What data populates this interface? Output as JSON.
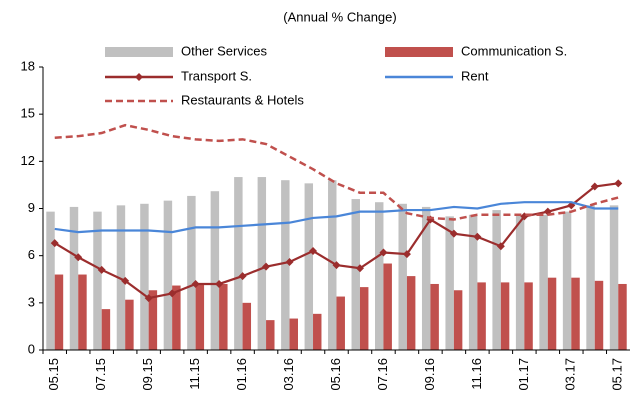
{
  "chart_data": {
    "type": "bar-line",
    "title": "(Annual % Change)",
    "categories": [
      "05.15",
      null,
      "07.15",
      null,
      "09.15",
      null,
      "11.15",
      null,
      "01.16",
      null,
      "03.16",
      null,
      "05.16",
      null,
      "07.16",
      null,
      "09.16",
      null,
      "11.16",
      null,
      "01.17",
      null,
      "03.17",
      null,
      "05.17"
    ],
    "ylim": [
      0,
      18
    ],
    "yticks": [
      0,
      3,
      6,
      9,
      12,
      15,
      18
    ],
    "series": [
      {
        "name": "Other Services",
        "kind": "bar",
        "color": "#c0c0c0",
        "values": [
          8.8,
          9.1,
          8.8,
          9.2,
          9.3,
          9.5,
          9.8,
          10.1,
          11.0,
          11.0,
          10.8,
          10.6,
          10.8,
          9.6,
          9.4,
          9.3,
          9.1,
          8.5,
          8.6,
          8.9,
          8.6,
          8.6,
          8.8,
          9.2,
          9.2
        ]
      },
      {
        "name": "Communication S.",
        "kind": "bar",
        "color": "#c0504d",
        "values": [
          4.8,
          4.8,
          2.6,
          3.2,
          3.8,
          4.1,
          4.2,
          4.2,
          3.0,
          1.9,
          2.0,
          2.3,
          3.4,
          4.0,
          5.5,
          4.7,
          4.2,
          3.8,
          4.3,
          4.3,
          4.3,
          4.6,
          4.6,
          4.4,
          4.2
        ]
      },
      {
        "name": "Transport S.",
        "kind": "line",
        "marker": "diamond",
        "color": "#9b2d2d",
        "values": [
          6.8,
          5.9,
          5.1,
          4.4,
          3.3,
          3.6,
          4.2,
          4.2,
          4.7,
          5.3,
          5.6,
          6.3,
          5.4,
          5.2,
          6.2,
          6.1,
          8.3,
          7.4,
          7.2,
          6.6,
          8.5,
          8.8,
          9.2,
          10.4,
          10.6
        ]
      },
      {
        "name": "Rent",
        "kind": "line",
        "color": "#4a86d8",
        "values": [
          7.7,
          7.5,
          7.6,
          7.6,
          7.6,
          7.5,
          7.8,
          7.8,
          7.9,
          8.0,
          8.1,
          8.4,
          8.5,
          8.8,
          8.8,
          8.9,
          8.9,
          9.1,
          9.0,
          9.3,
          9.4,
          9.4,
          9.4,
          9.0,
          9.0
        ]
      },
      {
        "name": "Restaurants & Hotels",
        "kind": "line",
        "dashed": true,
        "color": "#c0504d",
        "values": [
          13.5,
          13.6,
          13.8,
          14.3,
          14.0,
          13.6,
          13.4,
          13.3,
          13.4,
          13.1,
          12.3,
          11.5,
          10.6,
          10.0,
          10.0,
          8.7,
          8.4,
          8.3,
          8.6,
          8.6,
          8.6,
          8.6,
          8.8,
          9.3,
          9.7
        ]
      }
    ]
  }
}
